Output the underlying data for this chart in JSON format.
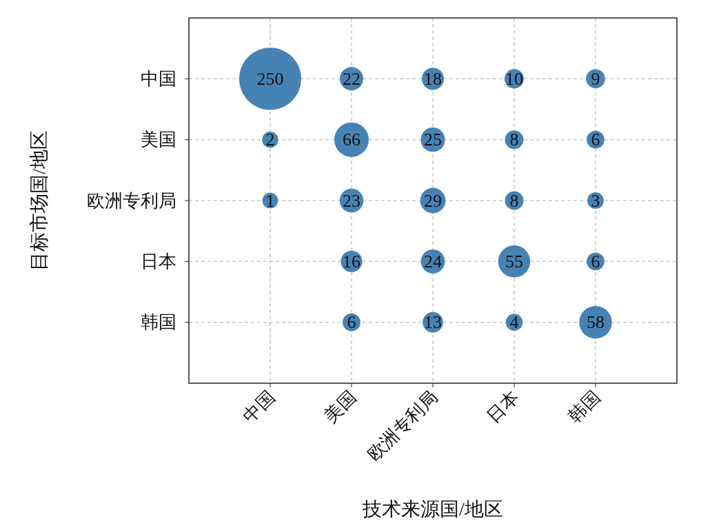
{
  "chart_data": {
    "type": "heatmap",
    "xlabel": "技术来源国/地区",
    "ylabel": "目标市场国/地区",
    "categories": [
      "中国",
      "美国",
      "欧洲专利局",
      "日本",
      "韩国"
    ],
    "y_categories": [
      "中国",
      "美国",
      "欧洲专利局",
      "日本",
      "韩国"
    ],
    "cells": [
      [
        250,
        22,
        18,
        10,
        9
      ],
      [
        2,
        66,
        25,
        8,
        6
      ],
      [
        1,
        23,
        29,
        8,
        3
      ],
      [
        null,
        16,
        24,
        55,
        6
      ],
      [
        null,
        6,
        13,
        4,
        58
      ]
    ],
    "color": "#4682b4",
    "data_labels": true,
    "grid": true
  }
}
